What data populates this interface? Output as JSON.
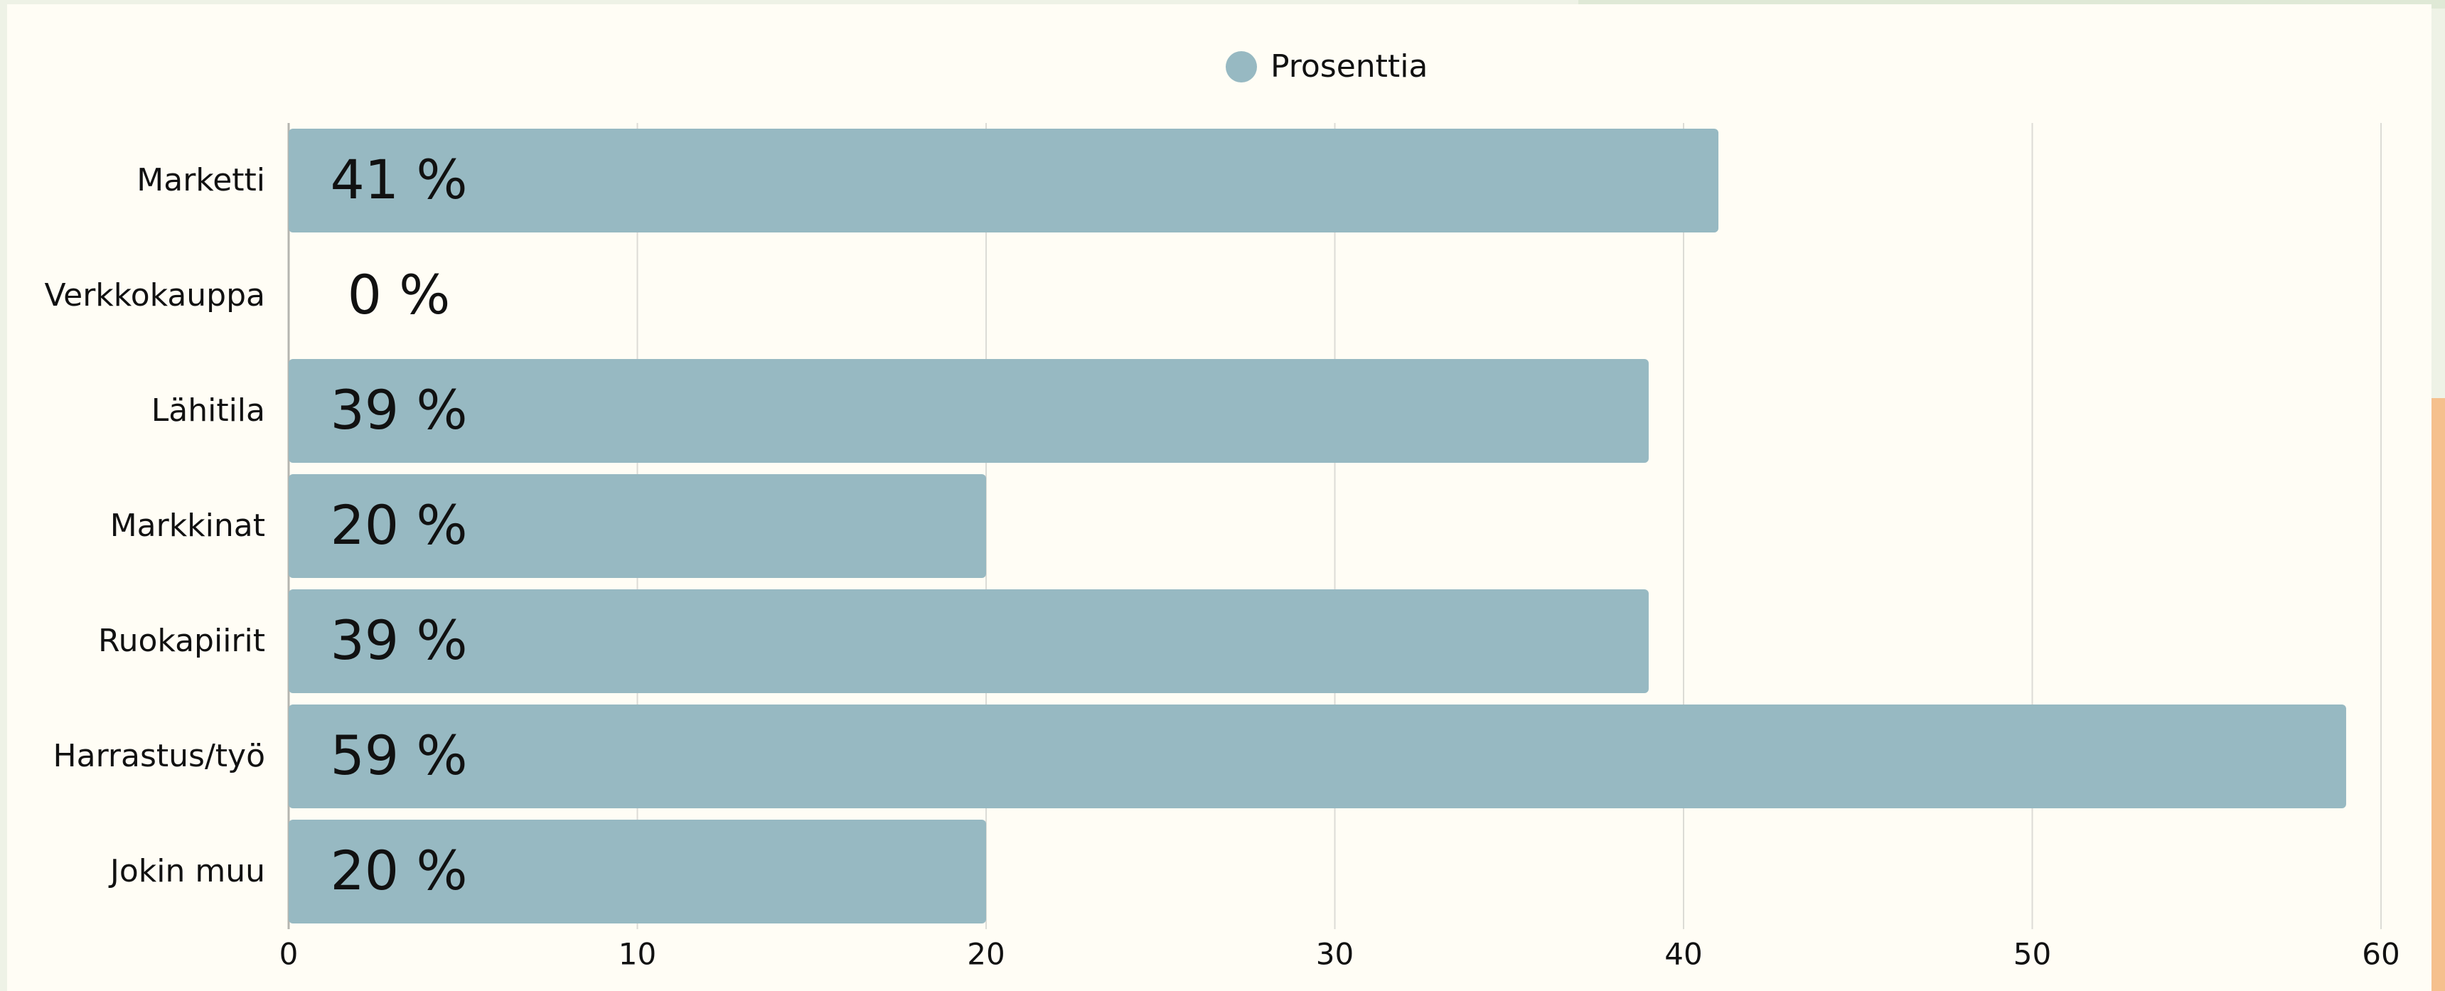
{
  "chart_data": {
    "type": "bar",
    "orientation": "horizontal",
    "categories": [
      "Marketti",
      "Verkkokauppa",
      "Lähitila",
      "Markkinat",
      "Ruokapiirit",
      "Harrastus/työ",
      "Jokin muu"
    ],
    "series": [
      {
        "name": "Prosenttia",
        "color": "#97b9c2",
        "values": [
          41,
          0,
          39,
          20,
          39,
          59,
          20
        ],
        "value_labels": [
          "41 %",
          "0 %",
          "39 %",
          "20 %",
          "39 %",
          "59 %",
          "20 %"
        ]
      }
    ],
    "xlim": [
      0,
      60
    ],
    "xticks": [
      0,
      10,
      20,
      30,
      40,
      50,
      60
    ],
    "grid": true,
    "legend": "top"
  }
}
